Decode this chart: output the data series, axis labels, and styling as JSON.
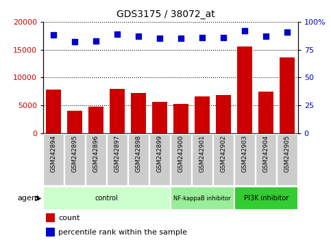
{
  "title": "GDS3175 / 38072_at",
  "samples": [
    "GSM242894",
    "GSM242895",
    "GSM242896",
    "GSM242897",
    "GSM242898",
    "GSM242899",
    "GSM242900",
    "GSM242901",
    "GSM242902",
    "GSM242903",
    "GSM242904",
    "GSM242905"
  ],
  "counts": [
    7800,
    4000,
    4700,
    8000,
    7200,
    5600,
    5200,
    6600,
    6800,
    15500,
    7400,
    13600
  ],
  "percentiles": [
    88,
    82,
    83,
    89,
    87,
    85,
    85,
    86,
    86,
    92,
    87,
    91
  ],
  "bar_color": "#cc0000",
  "dot_color": "#0000cc",
  "ylim_left": [
    0,
    20000
  ],
  "ylim_right": [
    0,
    100
  ],
  "yticks_left": [
    0,
    5000,
    10000,
    15000,
    20000
  ],
  "yticks_right": [
    0,
    25,
    50,
    75,
    100
  ],
  "groups": [
    {
      "label": "control",
      "start": 0,
      "end": 6,
      "color": "#ccffcc"
    },
    {
      "label": "NF-kappaB inhibitor",
      "start": 6,
      "end": 9,
      "color": "#99ee99"
    },
    {
      "label": "PI3K inhibitor",
      "start": 9,
      "end": 12,
      "color": "#33cc33"
    }
  ],
  "agent_label": "agent",
  "legend_count_label": "count",
  "legend_pct_label": "percentile rank within the sample",
  "bar_color_red": "#cc0000",
  "dot_color_blue": "#0000cc",
  "sample_bg_color": "#cccccc",
  "white": "#ffffff",
  "black": "#000000"
}
